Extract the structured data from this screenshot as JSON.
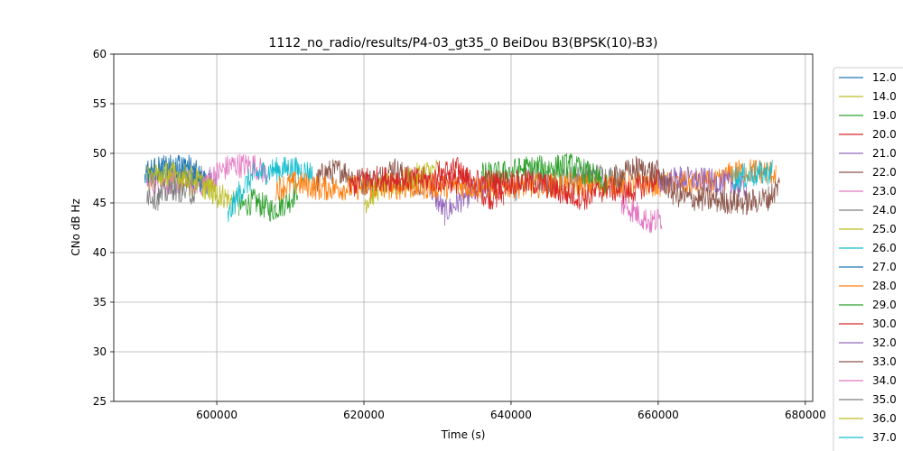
{
  "chart_data": {
    "type": "line",
    "title": "1112_no_radio/results/P4-03_gt35_0 BeiDou B3(BPSK(10)-B3)",
    "xlabel": "Time (s)",
    "ylabel": "CNo dB Hz",
    "xlim": [
      586000,
      681000
    ],
    "ylim": [
      25,
      60
    ],
    "xticks": [
      600000,
      620000,
      640000,
      660000,
      680000
    ],
    "xtick_labels": [
      "600000",
      "620000",
      "640000",
      "660000",
      "680000"
    ],
    "yticks": [
      25,
      30,
      35,
      40,
      45,
      50,
      55,
      60
    ],
    "ytick_labels": [
      "25",
      "30",
      "35",
      "40",
      "45",
      "50",
      "55",
      "60"
    ],
    "grid": true,
    "legend_position": "right, outside plot",
    "series": [
      {
        "name": "12.0",
        "color": "#1f77b4",
        "points": [
          [
            590200,
            47.5
          ],
          [
            593000,
            48.0
          ],
          [
            596000,
            48.8
          ],
          [
            598500,
            47.2
          ],
          [
            600000,
            46.8
          ]
        ]
      },
      {
        "name": "14.0",
        "color": "#bcbd22",
        "points": [
          [
            590500,
            48.2
          ],
          [
            593000,
            47.8
          ],
          [
            596000,
            47.0
          ],
          [
            599000,
            46.5
          ],
          [
            601500,
            45.5
          ],
          [
            602500,
            44.8
          ]
        ]
      },
      {
        "name": "19.0",
        "color": "#2ca02c",
        "points": [
          [
            603000,
            44.5
          ],
          [
            605000,
            45.2
          ],
          [
            607500,
            44.3
          ],
          [
            610000,
            45.3
          ],
          [
            611000,
            46.5
          ]
        ]
      },
      {
        "name": "20.0",
        "color": "#d62728",
        "points": [
          [
            630000,
            48.0
          ],
          [
            633000,
            48.4
          ],
          [
            635000,
            46.5
          ],
          [
            637500,
            45.5
          ],
          [
            639000,
            46.0
          ]
        ]
      },
      {
        "name": "21.0",
        "color": "#9467bd",
        "points": [
          [
            629000,
            46.5
          ],
          [
            631000,
            44.0
          ],
          [
            633500,
            45.5
          ],
          [
            636000,
            46.5
          ],
          [
            638000,
            47.0
          ]
        ]
      },
      {
        "name": "22.0",
        "color": "#8c564b",
        "points": [
          [
            613000,
            46.5
          ],
          [
            614500,
            48.0
          ],
          [
            617000,
            48.3
          ],
          [
            620000,
            47.0
          ],
          [
            622000,
            47.5
          ],
          [
            624000,
            48.5
          ],
          [
            626000,
            47.5
          ],
          [
            628000,
            46.5
          ]
        ]
      },
      {
        "name": "23.0",
        "color": "#e377c2",
        "points": [
          [
            590500,
            46.8
          ],
          [
            594000,
            47.2
          ],
          [
            598000,
            47.0
          ],
          [
            600000,
            48.0
          ],
          [
            602000,
            48.8
          ],
          [
            605000,
            48.8
          ],
          [
            607000,
            47.8
          ]
        ]
      },
      {
        "name": "24.0",
        "color": "#7f7f7f",
        "points": [
          [
            640500,
            45.5
          ],
          [
            642000,
            47.5
          ],
          [
            645000,
            47.0
          ],
          [
            648000,
            47.5
          ],
          [
            652000,
            47.8
          ],
          [
            655000,
            47.3
          ]
        ]
      },
      {
        "name": "25.0",
        "color": "#bcbd22",
        "points": [
          [
            620000,
            45.0
          ],
          [
            622000,
            46.5
          ],
          [
            625000,
            47.0
          ],
          [
            628000,
            48.0
          ],
          [
            630000,
            48.3
          ]
        ]
      },
      {
        "name": "26.0",
        "color": "#17becf",
        "points": [
          [
            601500,
            43.5
          ],
          [
            603000,
            46.0
          ],
          [
            605000,
            47.8
          ],
          [
            607500,
            48.3
          ],
          [
            610000,
            48.5
          ],
          [
            613000,
            48.0
          ]
        ]
      },
      {
        "name": "27.0",
        "color": "#1f77b4",
        "points": [
          [
            590500,
            48.2
          ],
          [
            592500,
            48.5
          ],
          [
            595000,
            48.6
          ],
          [
            598000,
            47.0
          ]
        ]
      },
      {
        "name": "28.0",
        "color": "#ff7f0e",
        "points": [
          [
            608000,
            46.5
          ],
          [
            611000,
            47.0
          ],
          [
            614000,
            46.5
          ],
          [
            668000,
            47.0
          ],
          [
            670000,
            48.0
          ],
          [
            673000,
            48.3
          ],
          [
            676000,
            48.0
          ]
        ]
      },
      {
        "name": "29.0",
        "color": "#2ca02c",
        "points": [
          [
            636000,
            47.8
          ],
          [
            639000,
            48.0
          ],
          [
            642000,
            48.5
          ],
          [
            645000,
            48.5
          ],
          [
            648000,
            48.8
          ],
          [
            651000,
            47.8
          ],
          [
            653000,
            46.5
          ]
        ]
      },
      {
        "name": "30.0",
        "color": "#d62728",
        "points": [
          [
            618000,
            46.5
          ],
          [
            620000,
            47.5
          ],
          [
            644000,
            47.0
          ],
          [
            647000,
            46.0
          ],
          [
            650000,
            45.5
          ],
          [
            653000,
            46.5
          ],
          [
            656000,
            46.0
          ],
          [
            660000,
            47.5
          ]
        ]
      },
      {
        "name": "32.0",
        "color": "#9467bd",
        "points": [
          [
            660000,
            47.0
          ],
          [
            663000,
            47.5
          ],
          [
            666000,
            47.3
          ],
          [
            669000,
            47.0
          ],
          [
            672000,
            46.5
          ]
        ]
      },
      {
        "name": "33.0",
        "color": "#8c564b",
        "points": [
          [
            654000,
            47.5
          ],
          [
            657000,
            48.5
          ],
          [
            660000,
            48.0
          ],
          [
            662000,
            46.0
          ],
          [
            664000,
            45.5
          ],
          [
            672000,
            45.0
          ],
          [
            675000,
            45.5
          ],
          [
            676500,
            46.8
          ]
        ]
      },
      {
        "name": "34.0",
        "color": "#e377c2",
        "points": [
          [
            655000,
            45.0
          ],
          [
            657000,
            44.0
          ],
          [
            659000,
            43.0
          ],
          [
            660500,
            43.5
          ]
        ]
      },
      {
        "name": "35.0",
        "color": "#7f7f7f",
        "points": [
          [
            590500,
            46.0
          ],
          [
            592000,
            45.5
          ],
          [
            594000,
            46.5
          ],
          [
            597000,
            46.0
          ]
        ]
      },
      {
        "name": "36.0",
        "color": "#bcbd22",
        "points": [
          [
            590500,
            47.5
          ],
          [
            593500,
            48.0
          ],
          [
            597000,
            47.5
          ],
          [
            600500,
            45.5
          ]
        ]
      },
      {
        "name": "37.0",
        "color": "#17becf",
        "points": [
          [
            670000,
            47.5
          ],
          [
            673000,
            47.8
          ],
          [
            675500,
            48.2
          ]
        ]
      }
    ]
  }
}
